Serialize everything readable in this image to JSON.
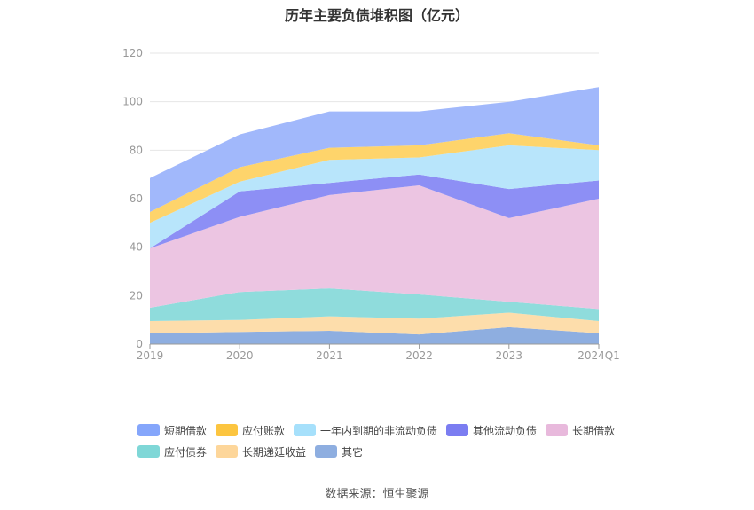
{
  "chart_data": {
    "type": "area",
    "title": "历年主要负债堆积图（亿元）",
    "categories": [
      "2019",
      "2020",
      "2021",
      "2022",
      "2023",
      "2024Q1"
    ],
    "ylim": [
      0,
      120
    ],
    "yticks": [
      0,
      20,
      40,
      60,
      80,
      100,
      120
    ],
    "grid": true,
    "legend_position": "bottom",
    "stacked": true,
    "series": [
      {
        "name": "其它",
        "color": "#8eaee0",
        "values": [
          4.5,
          5,
          5.5,
          4,
          7,
          4.5
        ]
      },
      {
        "name": "长期递延收益",
        "color": "#fdddab",
        "values": [
          5,
          5,
          6,
          6.5,
          6,
          5
        ]
      },
      {
        "name": "应付债券",
        "color": "#8fdcdc",
        "values": [
          5.5,
          11.5,
          11.5,
          10,
          4.5,
          5
        ]
      },
      {
        "name": "长期借款",
        "color": "#ecc5e2",
        "values": [
          24.5,
          31,
          38.5,
          45,
          34.5,
          45.5
        ]
      },
      {
        "name": "其他流动负债",
        "color": "#8d8ff5",
        "values": [
          0,
          10.5,
          5,
          4.5,
          12,
          7.5
        ]
      },
      {
        "name": "一年内到期的非流动负债",
        "color": "#b8e5fb",
        "values": [
          10.5,
          4,
          9.5,
          7,
          18,
          12.5
        ]
      },
      {
        "name": "应付账款",
        "color": "#fed46b",
        "values": [
          4.5,
          6,
          5,
          5,
          5,
          2
        ]
      },
      {
        "name": "短期借款",
        "color": "#a1b8fb",
        "values": [
          14,
          13.5,
          15,
          14,
          13,
          24
        ]
      }
    ],
    "legend": [
      {
        "name": "短期借款",
        "color": "#85a6fb"
      },
      {
        "name": "应付账款",
        "color": "#fcc540"
      },
      {
        "name": "一年内到期的非流动负债",
        "color": "#a6e0fb"
      },
      {
        "name": "其他流动负债",
        "color": "#7b7df1"
      },
      {
        "name": "长期借款",
        "color": "#e8b9dc"
      },
      {
        "name": "应付债券",
        "color": "#7fd7d7"
      },
      {
        "name": "长期递延收益",
        "color": "#fdd69a"
      },
      {
        "name": "其它",
        "color": "#8eaee0"
      }
    ]
  },
  "source": "数据来源：恒生聚源"
}
